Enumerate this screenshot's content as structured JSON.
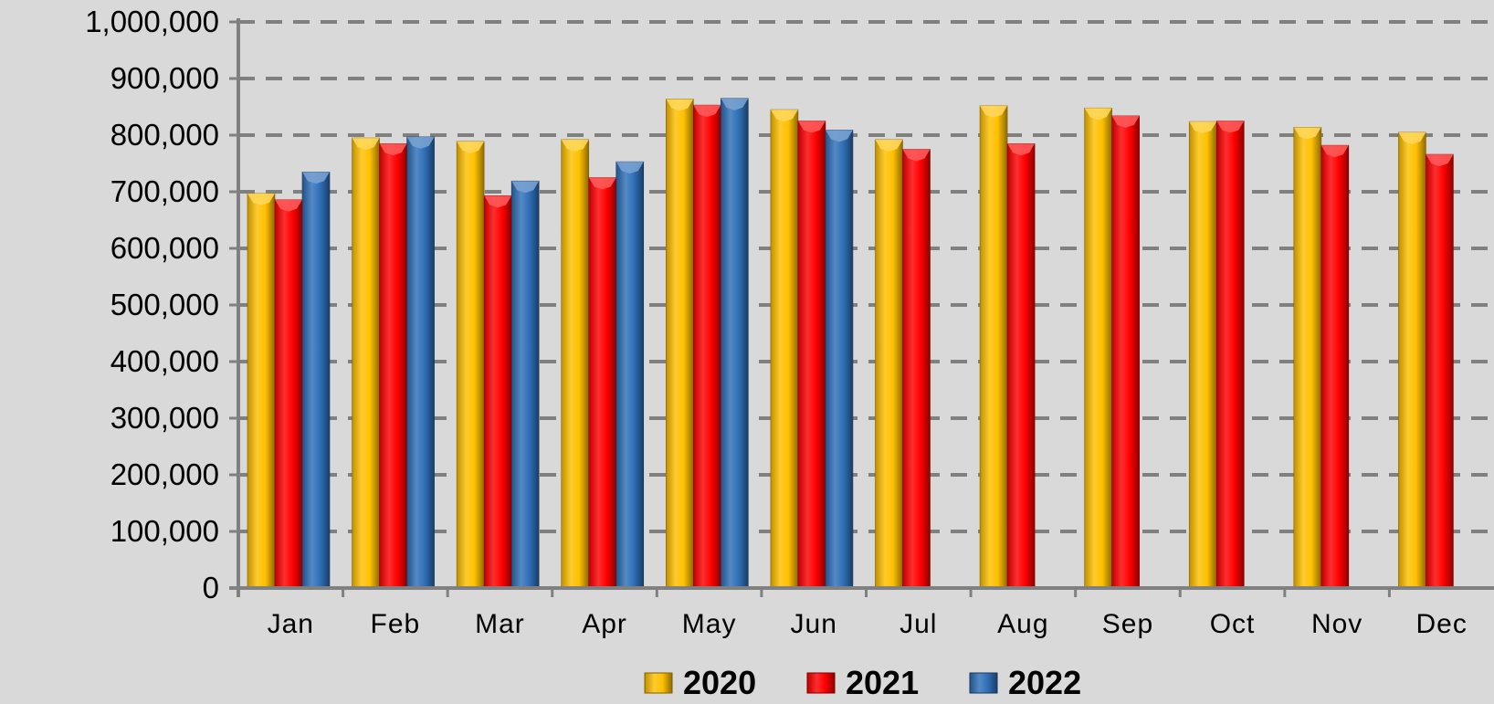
{
  "chart_data": {
    "type": "bar",
    "categories": [
      "Jan",
      "Feb",
      "Mar",
      "Apr",
      "May",
      "Jun",
      "Jul",
      "Aug",
      "Sep",
      "Oct",
      "Nov",
      "Dec"
    ],
    "series": [
      {
        "name": "2020",
        "color": "#FFC000",
        "values": [
          697000,
          795000,
          789000,
          792000,
          864000,
          845000,
          792000,
          852000,
          848000,
          824000,
          814000,
          805000
        ]
      },
      {
        "name": "2021",
        "color": "#FF0000",
        "values": [
          686000,
          785000,
          693000,
          725000,
          853000,
          825000,
          775000,
          785000,
          834000,
          825000,
          782000,
          766000
        ]
      },
      {
        "name": "2022",
        "color": "#2F6FB7",
        "values": [
          735000,
          797000,
          719000,
          753000,
          865000,
          809000,
          null,
          null,
          null,
          null,
          null,
          null
        ]
      }
    ],
    "y_ticks": [
      "0",
      "100,000",
      "200,000",
      "300,000",
      "400,000",
      "500,000",
      "600,000",
      "700,000",
      "800,000",
      "900,000",
      "1,000,000"
    ],
    "ylim": [
      0,
      1000000
    ],
    "title": "",
    "xlabel": "",
    "ylabel": "",
    "grid": true,
    "grid_style": "dashed",
    "legend_position": "bottom-center"
  }
}
